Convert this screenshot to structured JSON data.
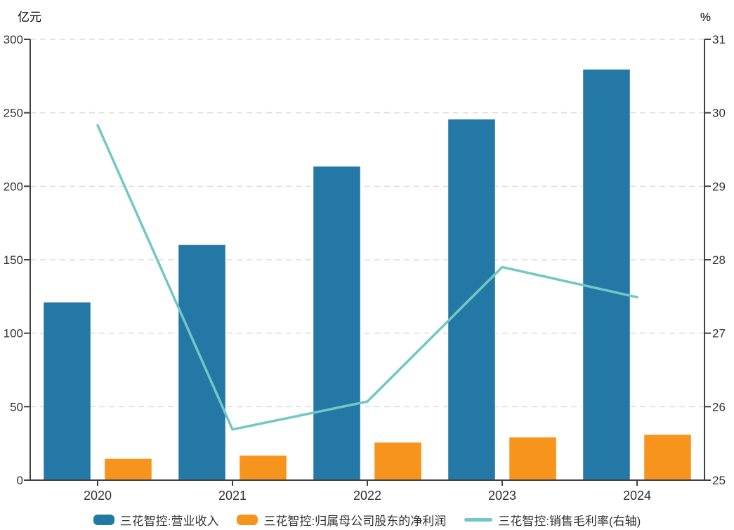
{
  "chart_data": {
    "type": "bar+line combo, dual y-axis",
    "categories": [
      "2020",
      "2021",
      "2022",
      "2023",
      "2024"
    ],
    "series": [
      {
        "name": "三花智控:营业收入",
        "type": "bar",
        "axis": "left",
        "color": "#2478a6",
        "values": [
          121.1,
          160.2,
          213.5,
          245.6,
          279.5
        ]
      },
      {
        "name": "三花智控:归属母公司股东的净利润",
        "type": "bar",
        "axis": "left",
        "color": "#f7941e",
        "values": [
          14.6,
          16.8,
          25.7,
          29.2,
          31.0
        ]
      },
      {
        "name": "三花智控:销售毛利率(右轴)",
        "type": "line",
        "axis": "right",
        "color": "#72c8c5",
        "values": [
          29.83,
          25.69,
          26.07,
          27.9,
          27.49
        ]
      }
    ],
    "left_axis": {
      "unit": "亿元",
      "min": 0,
      "max": 300,
      "ticks": [
        0,
        50,
        100,
        150,
        200,
        250,
        300
      ]
    },
    "right_axis": {
      "unit": "%",
      "min": 25,
      "max": 31,
      "ticks": [
        25,
        26,
        27,
        28,
        29,
        30,
        31
      ]
    },
    "grid": "horizontal dashed lines",
    "legend_position": "bottom-center"
  },
  "colors": {
    "axis": "#404040",
    "text": "#333333",
    "grid": "#dcdcdc",
    "background": "#ffffff"
  }
}
